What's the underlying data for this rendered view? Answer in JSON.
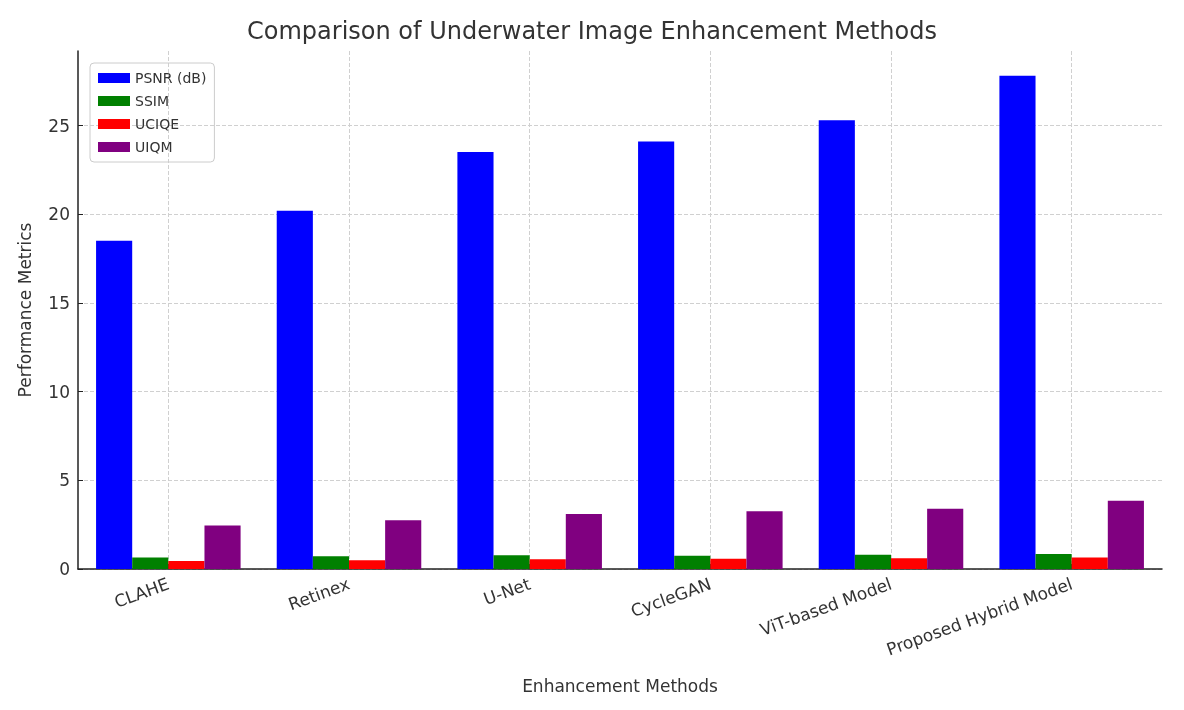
{
  "chart_data": {
    "type": "bar",
    "title": "Comparison of Underwater Image Enhancement Methods",
    "xlabel": "Enhancement Methods",
    "ylabel": "Performance Metrics",
    "categories": [
      "CLAHE",
      "Retinex",
      "U-Net",
      "CycleGAN",
      "ViT-based Model",
      "Proposed Hybrid Model"
    ],
    "series": [
      {
        "name": "PSNR (dB)",
        "color": "#0000ff",
        "values": [
          18.5,
          20.2,
          23.5,
          24.1,
          25.3,
          27.8
        ]
      },
      {
        "name": "SSIM",
        "color": "#008000",
        "values": [
          0.65,
          0.72,
          0.78,
          0.75,
          0.8,
          0.85
        ]
      },
      {
        "name": "UCIQE",
        "color": "#ff0000",
        "values": [
          0.45,
          0.5,
          0.55,
          0.58,
          0.6,
          0.65
        ]
      },
      {
        "name": "UIQM",
        "color": "#800080",
        "values": [
          2.45,
          2.75,
          3.1,
          3.25,
          3.4,
          3.85
        ]
      }
    ],
    "ylim": [
      0,
      29.2
    ],
    "yticks": [
      0,
      5,
      10,
      15,
      20,
      25
    ],
    "grid": true,
    "legend": "top left"
  }
}
